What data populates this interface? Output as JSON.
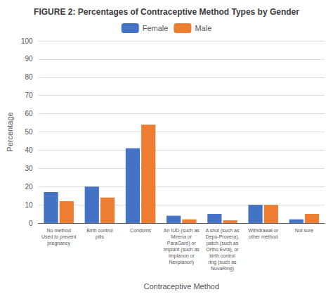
{
  "chart_data": {
    "type": "bar",
    "title": "FIGURE 2: Percentages of Contraceptive Method Types by Gender",
    "xlabel": "Contraceptive Method",
    "ylabel": "Percentage",
    "categories": [
      "No method\nUsed to prevent\npregnancy",
      "Birth control\npills",
      "Condoms",
      "An IUD (such as\nMirena or\nParaGard) or\nimplant (such as\nImplanon or\nNexplanon)",
      "A shot (such as\nDepo-Provera),\npatch (such as\nOrtho Evra), or\nbirth control\nring (such as\nNuvaRing)",
      "Withdrawal or\nother method",
      "Not sure"
    ],
    "series": [
      {
        "name": "Female",
        "color": "#4472C4",
        "values": [
          17,
          20,
          41,
          4,
          5,
          10,
          2
        ]
      },
      {
        "name": "Male",
        "color": "#ED7D31",
        "values": [
          12,
          14,
          54,
          2,
          1.5,
          10,
          5
        ]
      }
    ],
    "ylim": [
      0,
      100
    ],
    "yticks": [
      0,
      10,
      20,
      30,
      40,
      50,
      60,
      70,
      80,
      90,
      100
    ],
    "grid": true
  }
}
